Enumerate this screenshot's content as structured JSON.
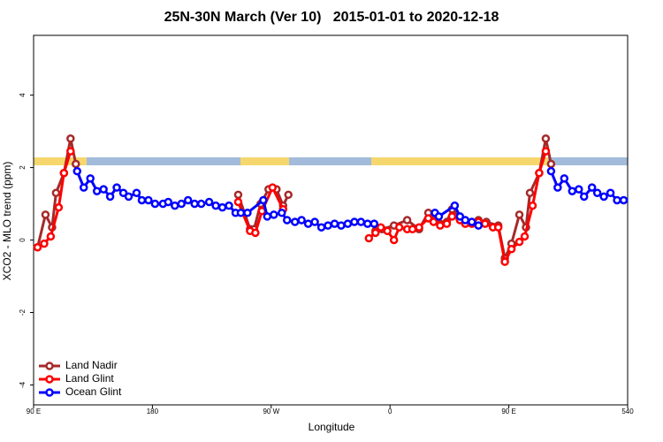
{
  "chart_data": {
    "type": "line",
    "title": "25N-30N March (Ver 10)   2015-01-01 to 2020-12-18",
    "x_label": "Longitude",
    "y_label": "XCO2 - MLO trend (ppm)",
    "xlim": [
      90,
      540
    ],
    "ylim": [
      -4.55,
      5.65
    ],
    "xticks": [
      {
        "value": 90,
        "label": "90 E"
      },
      180,
      {
        "value": 270,
        "label": "90 W"
      },
      {
        "value": 360,
        "label": "0"
      },
      {
        "value": 450,
        "label": "90 E"
      },
      540
    ],
    "yticks": [
      -4,
      -2,
      0,
      2,
      4
    ],
    "legend": "bottom-left",
    "series": [
      {
        "name": "Land Nadir",
        "color": "#a52a2a",
        "x": [
          93,
          99,
          104,
          107,
          113,
          118,
          122,
          null,
          245,
          254,
          257,
          262,
          268,
          274,
          279,
          283,
          null,
          349,
          354,
          363,
          373,
          382,
          389,
          398,
          403,
          407,
          417,
          427,
          433,
          442,
          447,
          452,
          458,
          463,
          466,
          473,
          478,
          482
        ],
        "values": [
          -0.2,
          0.7,
          0.35,
          1.3,
          1.85,
          2.8,
          2.1,
          null,
          1.25,
          0.3,
          0.3,
          1.0,
          1.4,
          1.4,
          0.95,
          1.25,
          null,
          0.25,
          0.3,
          0.4,
          0.55,
          0.3,
          0.75,
          0.45,
          0.5,
          0.85,
          0.5,
          0.55,
          0.5,
          0.4,
          -0.5,
          -0.1,
          0.7,
          0.35,
          1.3,
          1.85,
          2.8,
          2.1
        ]
      },
      {
        "name": "Land Glint",
        "color": "#ff0000",
        "x": [
          93,
          98,
          103,
          109,
          113,
          118,
          null,
          245,
          254,
          258,
          263,
          271,
          279,
          null,
          344,
          349,
          353,
          358,
          363,
          367,
          373,
          377,
          382,
          389,
          393,
          398,
          403,
          407,
          413,
          417,
          422,
          427,
          432,
          438,
          442,
          447,
          452,
          458,
          462,
          468,
          473,
          478
        ],
        "values": [
          -0.2,
          -0.1,
          0.1,
          0.9,
          1.85,
          2.45,
          null,
          1.05,
          0.25,
          0.2,
          0.8,
          1.45,
          0.85,
          null,
          0.05,
          0.2,
          0.35,
          0.25,
          0.0,
          0.35,
          0.3,
          0.3,
          0.35,
          0.6,
          0.5,
          0.4,
          0.45,
          0.65,
          0.55,
          0.45,
          0.45,
          0.5,
          0.45,
          0.35,
          0.35,
          -0.6,
          -0.25,
          -0.05,
          0.1,
          0.95,
          1.85,
          2.45
        ]
      },
      {
        "name": "Ocean Glint",
        "color": "#0000ff",
        "x": [
          123,
          128,
          133,
          138,
          143,
          148,
          153,
          158,
          162,
          168,
          172,
          177,
          182,
          188,
          192,
          197,
          202,
          207,
          212,
          217,
          223,
          228,
          233,
          238,
          243,
          247,
          252,
          264,
          267,
          272,
          278,
          282,
          288,
          293,
          298,
          303,
          308,
          313,
          318,
          323,
          328,
          333,
          338,
          343,
          348,
          null,
          394,
          397,
          409,
          413,
          417,
          422,
          427,
          null,
          482,
          487,
          492,
          498,
          503,
          507,
          513,
          517,
          522,
          527,
          532,
          537
        ],
        "values": [
          1.9,
          1.45,
          1.7,
          1.35,
          1.4,
          1.2,
          1.45,
          1.3,
          1.2,
          1.3,
          1.1,
          1.1,
          1.0,
          1.0,
          1.05,
          0.95,
          1.0,
          1.1,
          1.0,
          1.0,
          1.05,
          0.95,
          0.9,
          0.95,
          0.75,
          0.75,
          0.75,
          1.1,
          0.65,
          0.7,
          0.75,
          0.55,
          0.5,
          0.55,
          0.45,
          0.5,
          0.35,
          0.4,
          0.45,
          0.4,
          0.45,
          0.5,
          0.5,
          0.45,
          0.45,
          null,
          0.75,
          0.65,
          0.95,
          0.65,
          0.55,
          0.5,
          0.4,
          null,
          1.9,
          1.45,
          1.7,
          1.35,
          1.4,
          1.2,
          1.45,
          1.3,
          1.2,
          1.3,
          1.1,
          1.1
        ]
      }
    ]
  }
}
